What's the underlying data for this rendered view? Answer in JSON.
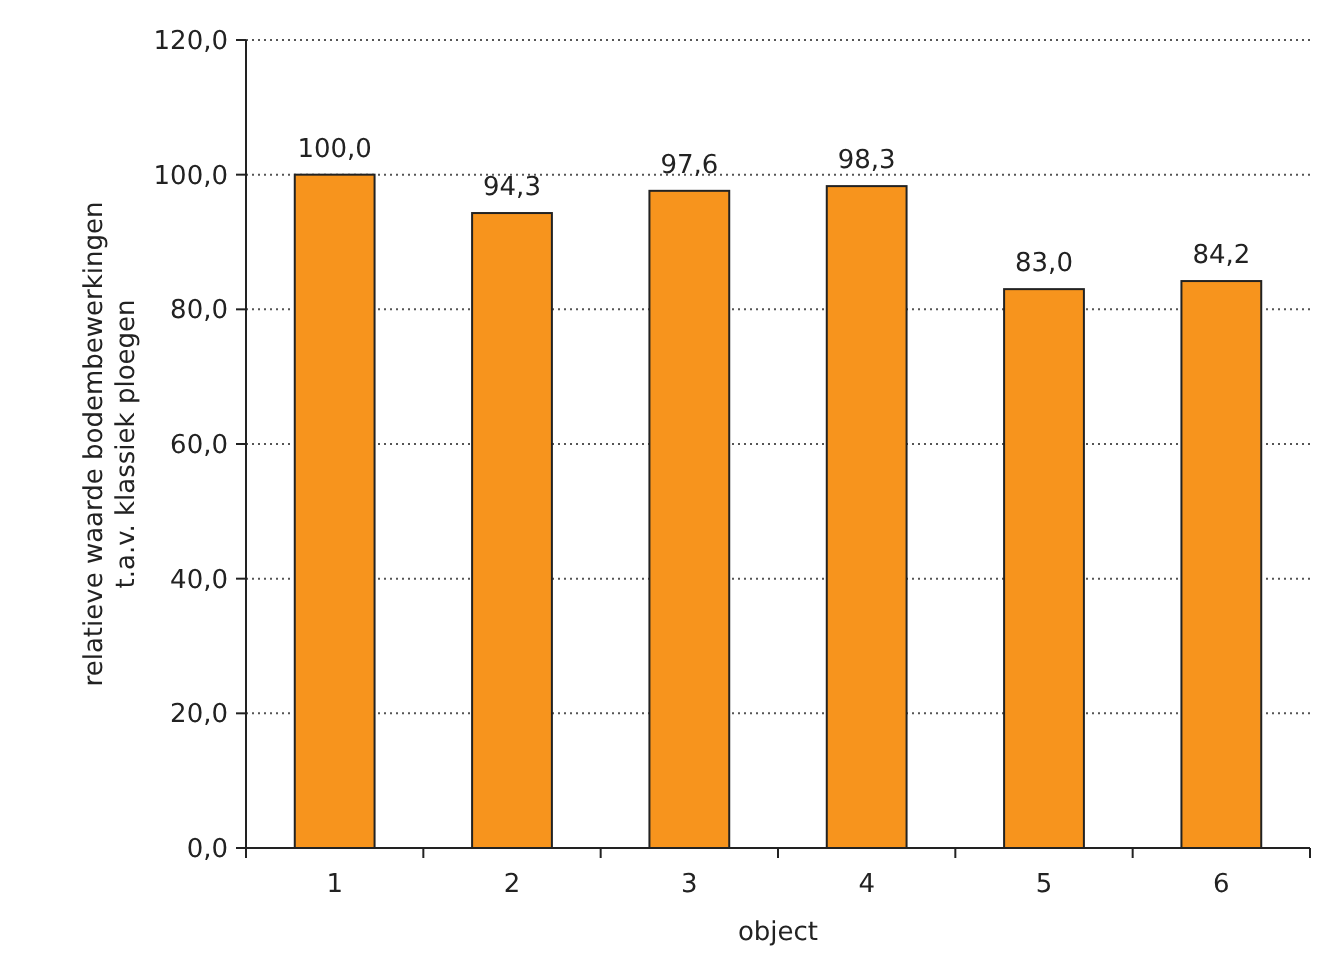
{
  "chart_data": {
    "type": "bar",
    "xlabel": "object",
    "ylabel": "relatieve waarde bodembewerkingen\nt.a.v. klassiek ploegen",
    "categories": [
      "1",
      "2",
      "3",
      "4",
      "5",
      "6"
    ],
    "values": [
      100.0,
      94.3,
      97.6,
      98.3,
      83.0,
      84.2
    ],
    "value_labels": [
      "100,0",
      "94,3",
      "97,6",
      "98,3",
      "83,0",
      "84,2"
    ],
    "color": "#f7941d",
    "ylim": [
      0,
      120
    ],
    "yticks": [
      {
        "value": 0,
        "label": "0,0"
      },
      {
        "value": 20,
        "label": "20,0"
      },
      {
        "value": 40,
        "label": "40,0"
      },
      {
        "value": 60,
        "label": "60,0"
      },
      {
        "value": 80,
        "label": "80,0"
      },
      {
        "value": 100,
        "label": "100,0"
      },
      {
        "value": 120,
        "label": "120,0"
      }
    ],
    "grid": "y"
  }
}
